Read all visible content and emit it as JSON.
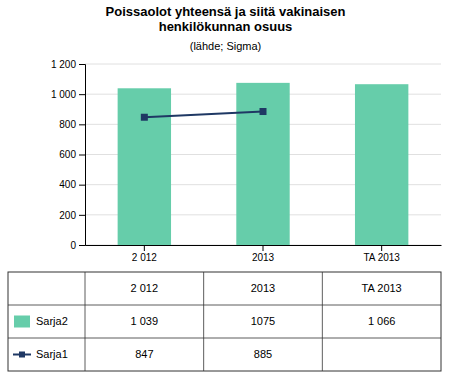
{
  "chart_data": {
    "type": "bar",
    "title": "Poissaolot yhteensä ja siitä vakinaisen\nhenkilökunnan osuus",
    "subtitle": "(lähde; Sigma)",
    "categories": [
      "2 012",
      "2013",
      "TA 2013"
    ],
    "series": [
      {
        "name": "Sarja2",
        "type": "bar",
        "color": "#66CDAA",
        "values": [
          1039,
          1075,
          1066
        ],
        "value_labels": [
          "1 039",
          "1075",
          "1 066"
        ]
      },
      {
        "name": "Sarja1",
        "type": "line",
        "color": "#1F3864",
        "marker": "square",
        "values": [
          847,
          885,
          null
        ],
        "value_labels": [
          "847",
          "885",
          null
        ]
      }
    ],
    "ylim": [
      0,
      1200
    ],
    "yticks": [
      0,
      200,
      400,
      600,
      800,
      {
        "value": 1000,
        "label": "1 000"
      },
      {
        "value": 1200,
        "label": "1 200"
      }
    ],
    "grid": true,
    "legend": "bottom"
  }
}
